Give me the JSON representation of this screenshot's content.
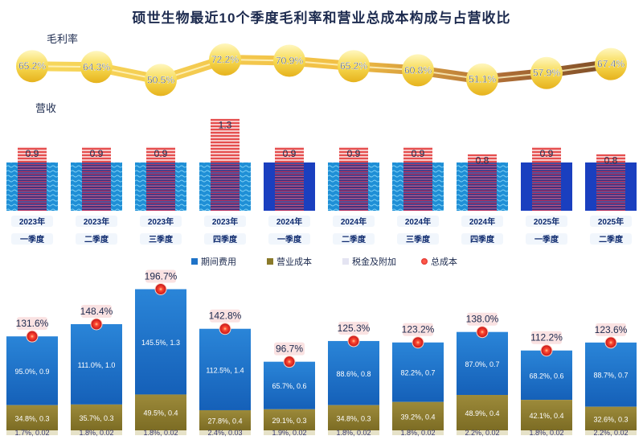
{
  "title": "硕世生物最近10个季度毛利率和营业总成本构成与占营收比",
  "labels": {
    "margin": "毛利率",
    "revenue": "营收"
  },
  "legend": [
    {
      "name": "期间费用",
      "color": "#1e73c8",
      "shape": "square"
    },
    {
      "name": "营业成本",
      "color": "#8a7a2a",
      "shape": "square"
    },
    {
      "name": "税金及附加",
      "color": "#d0d0e8",
      "shape": "square"
    },
    {
      "name": "总成本",
      "color": "#e0261c",
      "shape": "dot"
    }
  ],
  "chart_data": {
    "type": "bar",
    "title": "硕世生物最近10个季度毛利率和营业总成本构成与占营收比",
    "categories": [
      [
        "2023年",
        "一季度"
      ],
      [
        "2023年",
        "二季度"
      ],
      [
        "2023年",
        "三季度"
      ],
      [
        "2023年",
        "四季度"
      ],
      [
        "2024年",
        "一季度"
      ],
      [
        "2024年",
        "二季度"
      ],
      [
        "2024年",
        "三季度"
      ],
      [
        "2024年",
        "四季度"
      ],
      [
        "2025年",
        "一季度"
      ],
      [
        "2025年",
        "二季度"
      ]
    ],
    "gross_margin": [
      "65.2%",
      "64.3%",
      "50.5%",
      "72.2%",
      "70.9%",
      "65.2%",
      "60.8%",
      "51.1%",
      "57.9%",
      "67.4%"
    ],
    "gross_margin_values": [
      65.2,
      64.3,
      50.5,
      72.2,
      70.9,
      65.2,
      60.8,
      51.1,
      57.9,
      67.4
    ],
    "revenue_labels": [
      "0.9",
      "0.9",
      "0.9",
      "1.3",
      "0.9",
      "0.9",
      "0.9",
      "0.8",
      "0.9",
      "0.8"
    ],
    "revenue_values": [
      0.9,
      0.9,
      0.9,
      1.3,
      0.9,
      0.9,
      0.9,
      0.8,
      0.9,
      0.8
    ],
    "total_cost_labels": [
      "131.6%",
      "148.4%",
      "196.7%",
      "142.8%",
      "96.7%",
      "125.3%",
      "123.2%",
      "138.0%",
      "112.2%",
      "123.6%"
    ],
    "total_cost_values": [
      131.6,
      148.4,
      196.7,
      142.8,
      96.7,
      125.3,
      123.2,
      138.0,
      112.2,
      123.6
    ],
    "series": [
      {
        "name": "期间费用",
        "pct": [
          95.0,
          111.0,
          145.5,
          112.5,
          65.7,
          88.6,
          82.2,
          87.0,
          68.2,
          88.7
        ],
        "labels": [
          "95.0%, 0.9",
          "111.0%, 1.0",
          "145.5%, 1.3",
          "112.5%, 1.4",
          "65.7%, 0.6",
          "88.6%, 0.8",
          "82.2%, 0.7",
          "87.0%, 0.7",
          "68.2%, 0.6",
          "88.7%, 0.7"
        ]
      },
      {
        "name": "营业成本",
        "pct": [
          34.8,
          35.7,
          49.5,
          27.8,
          29.1,
          34.8,
          39.2,
          48.9,
          42.1,
          32.6
        ],
        "labels": [
          "34.8%, 0.3",
          "35.7%, 0.3",
          "49.5%, 0.4",
          "27.8%, 0.4",
          "29.1%, 0.3",
          "34.8%, 0.3",
          "39.2%, 0.4",
          "48.9%, 0.4",
          "42.1%, 0.4",
          "32.6%, 0.3"
        ]
      },
      {
        "name": "税金及附加",
        "pct": [
          1.7,
          1.8,
          1.8,
          2.4,
          1.9,
          1.8,
          1.8,
          2.2,
          1.8,
          2.2
        ],
        "labels": [
          "1.7%, 0.02",
          "1.8%, 0.02",
          "1.8%, 0.02",
          "2.4%, 0.03",
          "1.9%, 0.02",
          "1.8%, 0.02",
          "1.8%, 0.02",
          "2.2%, 0.02",
          "1.8%, 0.02",
          "2.2%, 0.02"
        ]
      }
    ]
  }
}
